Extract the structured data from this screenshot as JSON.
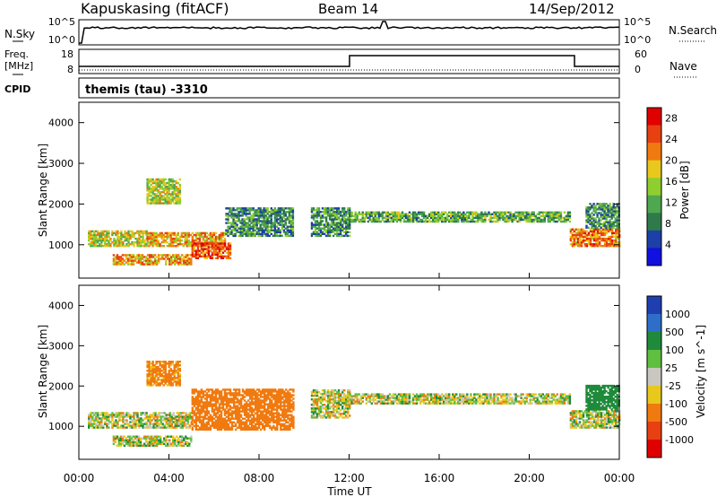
{
  "header": {
    "station": "Kapuskasing (fitACF)",
    "beam": "Beam 14",
    "date": "14/Sep/2012"
  },
  "noise_panel": {
    "left_label": "N.Sky",
    "right_label": "N.Search",
    "left_ticks": [
      "10^5",
      "10^0"
    ],
    "right_ticks": [
      "10^5",
      "10^0"
    ]
  },
  "freq_panel": {
    "left_label_1": "Freq.",
    "left_label_2": "[MHz]",
    "right_label": "Nave",
    "left_ticks": [
      "18",
      "8"
    ],
    "right_ticks": [
      "60",
      "0"
    ]
  },
  "cpid_panel": {
    "label": "CPID",
    "text": "themis (tau) -3310"
  },
  "colors": {
    "power_scale": [
      "#1010e0",
      "#1c3fa8",
      "#2f7a4a",
      "#4fa74f",
      "#8fce2f",
      "#e8c81c",
      "#f07a10",
      "#e84010",
      "#e00000"
    ],
    "velocity_scale": [
      "#1f3fb0",
      "#2f6ec8",
      "#1f8a3a",
      "#5fbf3f",
      "#c8c8c0",
      "#e8c81c",
      "#f07a10",
      "#e84010",
      "#e00000"
    ],
    "ground_scatter": "#c8c8c0"
  },
  "chart_data": [
    {
      "type": "heatmap",
      "title": "Power",
      "xlabel": "Time UT",
      "ylabel": "Slant Range [km]",
      "x_ticks": [
        "00:00",
        "04:00",
        "08:00",
        "12:00",
        "16:00",
        "20:00",
        "00:00"
      ],
      "y_ticks": [
        1000,
        2000,
        3000,
        4000
      ],
      "xlim_hours": [
        0,
        24
      ],
      "ylim_km": [
        180,
        4500
      ],
      "colorbar": {
        "label": "Power [dB]",
        "ticks": [
          28,
          24,
          20,
          16,
          12,
          8,
          4
        ],
        "range": [
          0,
          30
        ]
      },
      "echo_bands": [
        {
          "start_h": 0.4,
          "end_h": 3.0,
          "range_km": [
            950,
            1350
          ],
          "value": 16
        },
        {
          "start_h": 3.0,
          "end_h": 6.5,
          "range_km": [
            950,
            1300
          ],
          "value": 20
        },
        {
          "start_h": 1.5,
          "end_h": 5.0,
          "range_km": [
            500,
            750
          ],
          "value": 20
        },
        {
          "start_h": 5.0,
          "end_h": 6.7,
          "range_km": [
            650,
            1050
          ],
          "value": 24
        },
        {
          "start_h": 6.5,
          "end_h": 9.5,
          "range_km": [
            1200,
            1900
          ],
          "value": 10
        },
        {
          "start_h": 10.3,
          "end_h": 12.0,
          "range_km": [
            1200,
            1900
          ],
          "value": 10
        },
        {
          "start_h": 12.0,
          "end_h": 21.8,
          "range_km": [
            1550,
            1800
          ],
          "value": 12
        },
        {
          "start_h": 21.8,
          "end_h": 24.0,
          "range_km": [
            950,
            1400
          ],
          "value": 22
        },
        {
          "start_h": 22.5,
          "end_h": 24.0,
          "range_km": [
            1400,
            2000
          ],
          "value": 10
        },
        {
          "start_h": 3.0,
          "end_h": 4.5,
          "range_km": [
            2000,
            2600
          ],
          "value": 16
        }
      ]
    },
    {
      "type": "heatmap",
      "title": "Velocity",
      "xlabel": "Time UT",
      "ylabel": "Slant Range [km]",
      "x_ticks": [
        "00:00",
        "04:00",
        "08:00",
        "12:00",
        "16:00",
        "20:00",
        "00:00"
      ],
      "y_ticks": [
        1000,
        2000,
        3000,
        4000
      ],
      "xlim_hours": [
        0,
        24
      ],
      "ylim_km": [
        180,
        4500
      ],
      "colorbar": {
        "label": "Velocity [m s^-1]",
        "ticks": [
          "1000",
          "500",
          "100",
          "25",
          "-25",
          "-100",
          "-500",
          "-1000"
        ]
      },
      "echo_bands": [
        {
          "start_h": 0.4,
          "end_h": 5.0,
          "range_km": [
            950,
            1350
          ],
          "value": 0
        },
        {
          "start_h": 1.5,
          "end_h": 5.0,
          "range_km": [
            500,
            750
          ],
          "value": 0
        },
        {
          "start_h": 5.0,
          "end_h": 9.5,
          "range_km": [
            900,
            1900
          ],
          "value": -300
        },
        {
          "start_h": 3.0,
          "end_h": 4.5,
          "range_km": [
            2000,
            2600
          ],
          "value": -200
        },
        {
          "start_h": 10.3,
          "end_h": 12.0,
          "range_km": [
            1200,
            1900
          ],
          "value": 0
        },
        {
          "start_h": 12.0,
          "end_h": 21.8,
          "range_km": [
            1550,
            1800
          ],
          "value": 0
        },
        {
          "start_h": 21.8,
          "end_h": 24.0,
          "range_km": [
            950,
            1400
          ],
          "value": 0
        },
        {
          "start_h": 22.5,
          "end_h": 24.0,
          "range_km": [
            1400,
            2000
          ],
          "value": 300
        }
      ]
    }
  ]
}
